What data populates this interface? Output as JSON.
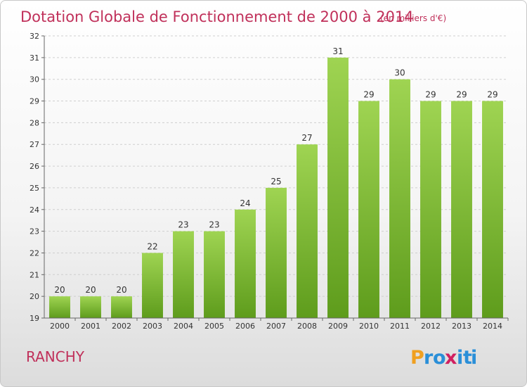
{
  "chart_data": {
    "type": "bar",
    "title": "Dotation Globale de Fonctionnement de 2000 à 2014",
    "subtitle": "(en milliers d'€)",
    "categories": [
      "2000",
      "2001",
      "2002",
      "2003",
      "2004",
      "2005",
      "2006",
      "2007",
      "2008",
      "2009",
      "2010",
      "2011",
      "2012",
      "2013",
      "2014"
    ],
    "values": [
      20,
      20,
      20,
      22,
      23,
      23,
      24,
      25,
      27,
      31,
      29,
      30,
      29,
      29,
      29
    ],
    "ylim": [
      19,
      32
    ],
    "yticks": [
      19,
      20,
      21,
      22,
      23,
      24,
      25,
      26,
      27,
      28,
      29,
      30,
      31,
      32
    ],
    "grid": "y-dashed",
    "bar_color": "#7cbf2e"
  },
  "commune": "RANCHY",
  "logo": {
    "letters": [
      "P",
      "r",
      "o",
      "x",
      "i",
      "t",
      "i"
    ],
    "colors": [
      "#f0a020",
      "#2a8fd8",
      "#2a8fd8",
      "#d02060",
      "#2a8fd8",
      "#2a8fd8",
      "#2a8fd8"
    ]
  }
}
